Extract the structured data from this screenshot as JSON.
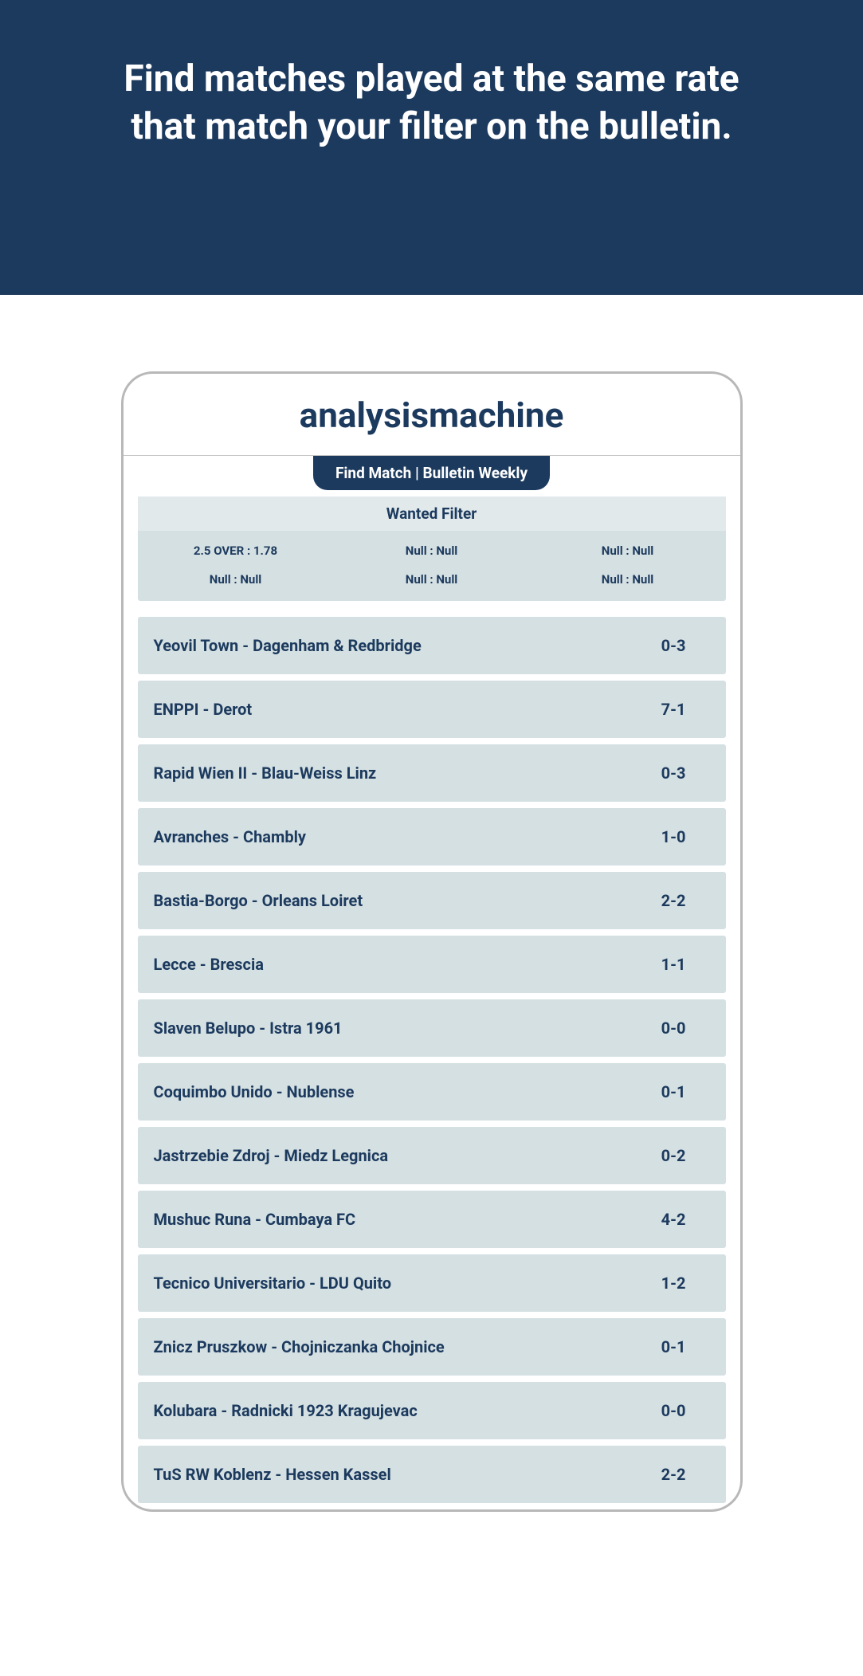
{
  "banner": {
    "line1": "Find matches played at the same rate",
    "line2": "that match your filter on the bulletin."
  },
  "app": {
    "title": "analysismachine",
    "tab_label": "Find Match | Bulletin Weekly"
  },
  "filter": {
    "title": "Wanted Filter",
    "cells": [
      "2.5 OVER : 1.78",
      "Null : Null",
      "Null : Null",
      "Null : Null",
      "Null : Null",
      "Null : Null"
    ]
  },
  "matches": [
    {
      "name": "Yeovil Town - Dagenham & Redbridge",
      "score": "0-3"
    },
    {
      "name": "ENPPI - Derot",
      "score": "7-1"
    },
    {
      "name": "Rapid Wien II - Blau-Weiss Linz",
      "score": "0-3"
    },
    {
      "name": "Avranches - Chambly",
      "score": "1-0"
    },
    {
      "name": "Bastia-Borgo - Orleans Loiret",
      "score": "2-2"
    },
    {
      "name": "Lecce - Brescia",
      "score": "1-1"
    },
    {
      "name": "Slaven Belupo - Istra 1961",
      "score": "0-0"
    },
    {
      "name": "Coquimbo Unido - Nublense",
      "score": "0-1"
    },
    {
      "name": "Jastrzebie Zdroj - Miedz Legnica",
      "score": "0-2"
    },
    {
      "name": "Mushuc Runa - Cumbaya FC",
      "score": "4-2"
    },
    {
      "name": "Tecnico Universitario - LDU Quito",
      "score": "1-2"
    },
    {
      "name": "Znicz Pruszkow - Chojniczanka Chojnice",
      "score": "0-1"
    },
    {
      "name": "Kolubara - Radnicki 1923 Kragujevac",
      "score": "0-0"
    },
    {
      "name": "TuS RW Koblenz - Hessen Kassel",
      "score": "2-2"
    }
  ],
  "colors": {
    "primary_dark": "#1c3a5e",
    "row_bg": "#d5e0e2",
    "filter_title_bg": "#e1e9eb",
    "frame_border": "#b8b8b8",
    "white": "#ffffff"
  }
}
